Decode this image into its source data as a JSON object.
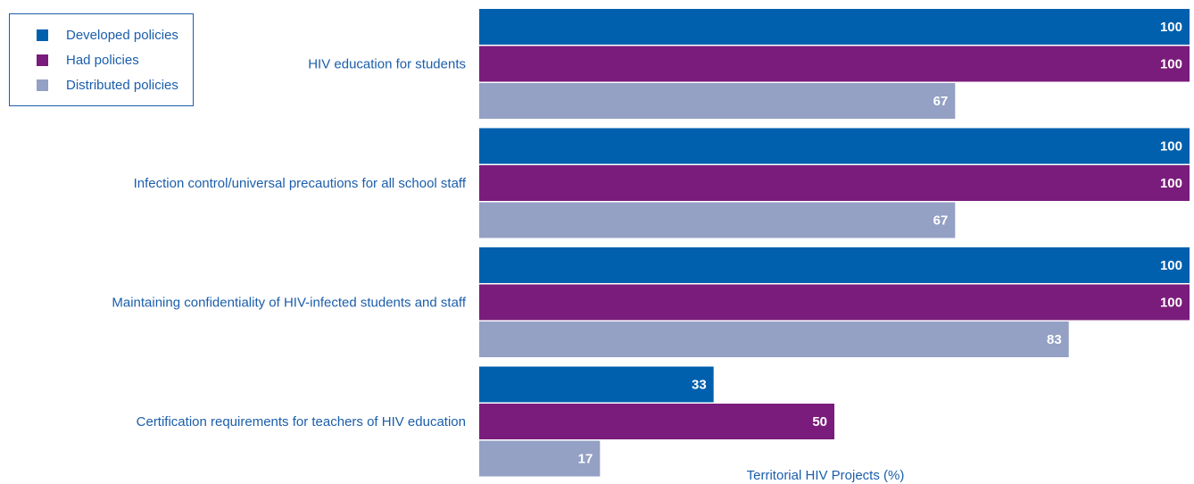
{
  "chart_data": {
    "type": "bar",
    "orientation": "horizontal",
    "xlabel": "Territorial HIV Projects (%)",
    "xlim": [
      0,
      100
    ],
    "grid": false,
    "legend_position": "top-left",
    "categories": [
      "HIV education for students",
      "Infection control/universal precautions for all school staff",
      "Maintaining confidentiality of HIV-infected students and staff",
      "Certification requirements for teachers of HIV education"
    ],
    "series": [
      {
        "name": "Developed policies",
        "color": "#0060ae",
        "values": [
          100,
          100,
          100,
          33
        ]
      },
      {
        "name": "Had policies",
        "color": "#7a1c7b",
        "values": [
          100,
          100,
          100,
          50
        ]
      },
      {
        "name": "Distributed policies",
        "color": "#94a0c4",
        "values": [
          67,
          67,
          83,
          17
        ]
      }
    ]
  }
}
